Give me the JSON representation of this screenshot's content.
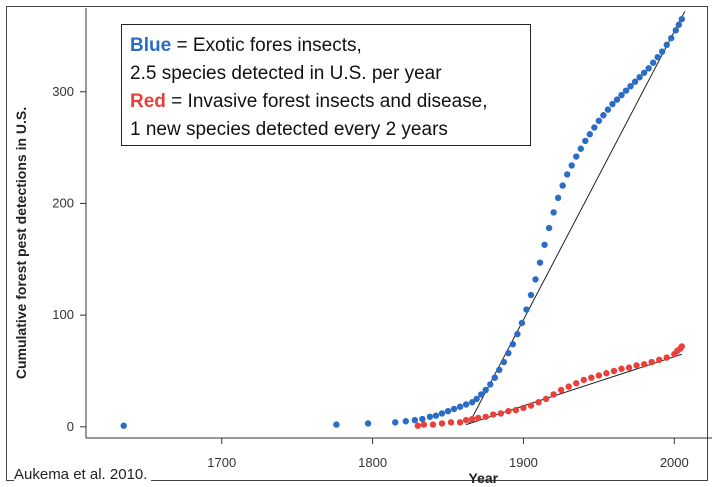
{
  "legend": {
    "line1_key": "Blue",
    "line1_rest": " = Exotic fores insects,",
    "line2": "2.5 species detected in U.S. per year",
    "line3_key": "Red",
    "line3_rest": " = Invasive forest insects and disease,",
    "line4": "1 new species detected every 2 years"
  },
  "source_note": "Aukema et al. 2010.",
  "chart_data": {
    "type": "scatter",
    "title": "",
    "xlabel": "Year",
    "ylabel": "Cumulative forest pest detections in U.S.",
    "xlim": [
      1610,
      2025
    ],
    "ylim": [
      -10,
      375
    ],
    "x_ticks": [
      1700,
      1800,
      1900,
      2000
    ],
    "y_ticks": [
      0,
      100,
      200,
      300
    ],
    "grid": false,
    "legend_position": "top-left",
    "colors": {
      "blue": "#2b6cc4",
      "red": "#e8403a",
      "trend": "#222222"
    },
    "series": [
      {
        "color": "blue",
        "points": [
          [
            1635,
            1
          ],
          [
            1776,
            2
          ],
          [
            1797,
            3
          ],
          [
            1815,
            4
          ],
          [
            1822,
            5
          ],
          [
            1828,
            6
          ],
          [
            1833,
            7
          ],
          [
            1838,
            9
          ],
          [
            1842,
            10
          ],
          [
            1846,
            12
          ],
          [
            1850,
            14
          ],
          [
            1854,
            16
          ],
          [
            1858,
            18
          ],
          [
            1862,
            20
          ],
          [
            1866,
            22
          ],
          [
            1869,
            25
          ],
          [
            1872,
            29
          ],
          [
            1875,
            33
          ],
          [
            1878,
            38
          ],
          [
            1881,
            44
          ],
          [
            1884,
            51
          ],
          [
            1887,
            58
          ],
          [
            1890,
            66
          ],
          [
            1893,
            74
          ],
          [
            1896,
            83
          ],
          [
            1899,
            93
          ],
          [
            1902,
            105
          ],
          [
            1905,
            118
          ],
          [
            1908,
            132
          ],
          [
            1911,
            147
          ],
          [
            1914,
            163
          ],
          [
            1917,
            178
          ],
          [
            1920,
            192
          ],
          [
            1923,
            205
          ],
          [
            1926,
            216
          ],
          [
            1929,
            226
          ],
          [
            1932,
            234
          ],
          [
            1935,
            242
          ],
          [
            1938,
            249
          ],
          [
            1941,
            256
          ],
          [
            1944,
            262
          ],
          [
            1947,
            268
          ],
          [
            1950,
            274
          ],
          [
            1953,
            279
          ],
          [
            1956,
            284
          ],
          [
            1959,
            289
          ],
          [
            1962,
            293
          ],
          [
            1965,
            297
          ],
          [
            1968,
            301
          ],
          [
            1971,
            305
          ],
          [
            1974,
            309
          ],
          [
            1977,
            313
          ],
          [
            1980,
            317
          ],
          [
            1983,
            321
          ],
          [
            1986,
            326
          ],
          [
            1989,
            331
          ],
          [
            1992,
            336
          ],
          [
            1995,
            342
          ],
          [
            1998,
            348
          ],
          [
            2001,
            355
          ],
          [
            2003,
            360
          ],
          [
            2005,
            365
          ]
        ],
        "trend": [
          [
            1864,
            3
          ],
          [
            2007,
            372
          ]
        ]
      },
      {
        "color": "red",
        "points": [
          [
            1830,
            1
          ],
          [
            1834,
            2
          ],
          [
            1840,
            2
          ],
          [
            1846,
            3
          ],
          [
            1852,
            4
          ],
          [
            1858,
            4
          ],
          [
            1862,
            6
          ],
          [
            1866,
            7
          ],
          [
            1870,
            8
          ],
          [
            1875,
            9
          ],
          [
            1880,
            11
          ],
          [
            1885,
            12
          ],
          [
            1890,
            14
          ],
          [
            1895,
            15
          ],
          [
            1900,
            17
          ],
          [
            1905,
            19
          ],
          [
            1910,
            22
          ],
          [
            1915,
            25
          ],
          [
            1920,
            29
          ],
          [
            1925,
            33
          ],
          [
            1930,
            36
          ],
          [
            1935,
            39
          ],
          [
            1940,
            42
          ],
          [
            1945,
            44
          ],
          [
            1950,
            46
          ],
          [
            1955,
            48
          ],
          [
            1960,
            50
          ],
          [
            1965,
            52
          ],
          [
            1970,
            53
          ],
          [
            1975,
            55
          ],
          [
            1980,
            56
          ],
          [
            1985,
            58
          ],
          [
            1990,
            60
          ],
          [
            1995,
            62
          ],
          [
            2000,
            65
          ],
          [
            2002,
            68
          ],
          [
            2004,
            70
          ],
          [
            2005,
            72
          ]
        ],
        "trend": [
          [
            1862,
            2
          ],
          [
            2005,
            65
          ]
        ]
      }
    ]
  }
}
